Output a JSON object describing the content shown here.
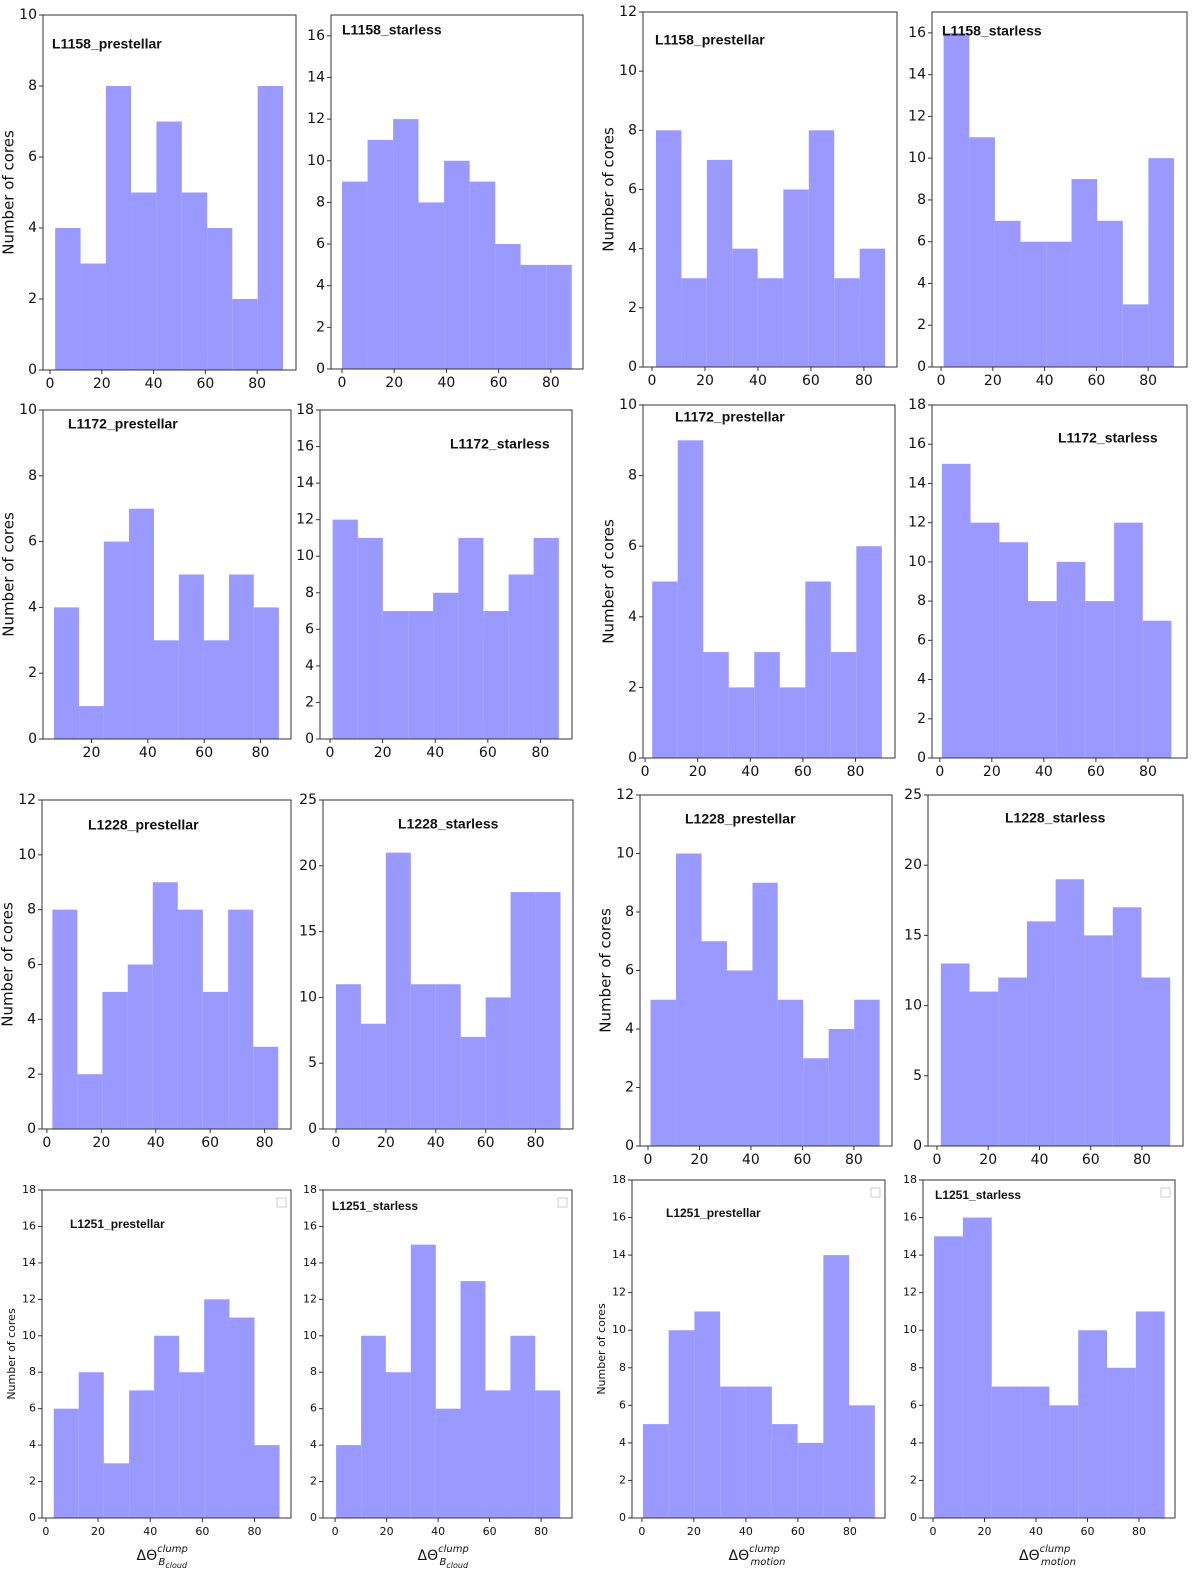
{
  "chart_data": [
    {
      "type": "histogram",
      "title": "L1158_prestellar",
      "ylabel": "Number of cores",
      "color": "#9999ff",
      "bins": [
        2,
        11.8,
        21.6,
        31.3,
        41.1,
        50.9,
        60.7,
        70.4,
        80.2,
        90
      ],
      "counts": [
        4,
        3,
        8,
        5,
        7,
        5,
        4,
        2,
        8
      ],
      "xlim": [
        -2.7,
        95
      ],
      "ylim": [
        0,
        10
      ],
      "xticks": [
        0,
        20,
        40,
        60,
        80
      ],
      "yticks": [
        0,
        2,
        4,
        6,
        8,
        10
      ]
    },
    {
      "type": "histogram",
      "title": "L1158_starless",
      "color": "#9999ff",
      "bins": [
        0,
        9.8,
        19.6,
        29.3,
        39.1,
        48.9,
        58.7,
        68.4,
        78.2,
        88
      ],
      "counts": [
        9,
        11,
        12,
        8,
        10,
        9,
        6,
        5,
        5
      ],
      "xlim": [
        -4.2,
        92.3
      ],
      "ylim": [
        0,
        17
      ],
      "xticks": [
        0,
        20,
        40,
        60,
        80
      ],
      "yticks": [
        0,
        2,
        4,
        6,
        8,
        10,
        12,
        14,
        16
      ]
    },
    {
      "type": "histogram",
      "title": "L1158_prestellar",
      "ylabel": "Number of cores",
      "color": "#9999ff",
      "bins": [
        1.5,
        11.1,
        20.7,
        30.3,
        39.9,
        49.6,
        59.2,
        68.8,
        78.4,
        88
      ],
      "counts": [
        8,
        3,
        7,
        4,
        3,
        6,
        8,
        3,
        4
      ],
      "xlim": [
        -3.4,
        92.5
      ],
      "ylim": [
        0,
        12
      ],
      "xticks": [
        0,
        20,
        40,
        60,
        80
      ],
      "yticks": [
        0,
        2,
        4,
        6,
        8,
        10,
        12
      ]
    },
    {
      "type": "histogram",
      "title": "L1158_starless",
      "color": "#9999ff",
      "bins": [
        1,
        10.9,
        20.8,
        30.7,
        40.6,
        50.4,
        60.3,
        70.2,
        80.1,
        90
      ],
      "counts": [
        16,
        11,
        7,
        6,
        6,
        9,
        7,
        3,
        10
      ],
      "xlim": [
        -3.5,
        95
      ],
      "ylim": [
        0,
        17
      ],
      "xticks": [
        0,
        20,
        40,
        60,
        80
      ],
      "yticks": [
        0,
        2,
        4,
        6,
        8,
        10,
        12,
        14,
        16
      ]
    },
    {
      "type": "histogram",
      "title": "L1172_prestellar",
      "ylabel": "Number of cores",
      "color": "#9999ff",
      "bins": [
        6.7,
        15.6,
        24.4,
        33.3,
        42.2,
        51.0,
        59.9,
        68.8,
        77.6,
        86.5
      ],
      "counts": [
        4,
        1,
        6,
        7,
        3,
        5,
        3,
        5,
        4
      ],
      "xlim": [
        2.8,
        90.8
      ],
      "ylim": [
        0,
        10
      ],
      "xticks": [
        20,
        40,
        60,
        80
      ],
      "yticks": [
        0,
        2,
        4,
        6,
        8,
        10
      ]
    },
    {
      "type": "histogram",
      "title": "L1172_starless",
      "color": "#9999ff",
      "bins": [
        1,
        10.6,
        20.1,
        29.7,
        39.2,
        48.8,
        58.3,
        67.9,
        77.4,
        87
      ],
      "counts": [
        12,
        11,
        7,
        7,
        8,
        11,
        7,
        9,
        11
      ],
      "xlim": [
        -3.8,
        92
      ],
      "ylim": [
        0,
        18
      ],
      "xticks": [
        0,
        20,
        40,
        60,
        80
      ],
      "yticks": [
        0,
        2,
        4,
        6,
        8,
        10,
        12,
        14,
        16,
        18
      ]
    },
    {
      "type": "histogram",
      "title": "L1172_prestellar",
      "ylabel": "Number of cores",
      "color": "#9999ff",
      "bins": [
        2.7,
        12.4,
        22.1,
        31.8,
        41.5,
        51.2,
        60.9,
        70.6,
        80.3,
        90
      ],
      "counts": [
        5,
        9,
        3,
        2,
        3,
        2,
        5,
        3,
        6
      ],
      "xlim": [
        -0.8,
        95
      ],
      "ylim": [
        0,
        10
      ],
      "xticks": [
        0,
        20,
        40,
        60,
        80
      ],
      "yticks": [
        0,
        2,
        4,
        6,
        8,
        10
      ]
    },
    {
      "type": "histogram",
      "title": "L1172_starless",
      "color": "#9999ff",
      "bins": [
        0.8,
        11.8,
        22.9,
        33.9,
        44.9,
        55.9,
        67.0,
        78.0,
        89
      ],
      "counts": [
        15,
        12,
        11,
        8,
        10,
        8,
        12,
        7
      ],
      "xlim": [
        -3,
        95
      ],
      "ylim": [
        0,
        18
      ],
      "xticks": [
        0,
        20,
        40,
        60,
        80
      ],
      "yticks": [
        0,
        2,
        4,
        6,
        8,
        10,
        12,
        14,
        16,
        18
      ]
    },
    {
      "type": "histogram",
      "title": "L1228_prestellar",
      "ylabel": "Number of cores",
      "color": "#9999ff",
      "bins": [
        2,
        11.2,
        20.4,
        29.7,
        38.9,
        48.1,
        57.3,
        66.6,
        75.8,
        85
      ],
      "counts": [
        8,
        2,
        5,
        6,
        9,
        8,
        5,
        8,
        3
      ],
      "xlim": [
        -1.8,
        89.7
      ],
      "ylim": [
        0,
        12
      ],
      "xticks": [
        0,
        20,
        40,
        60,
        80
      ],
      "yticks": [
        0,
        2,
        4,
        6,
        8,
        10,
        12
      ]
    },
    {
      "type": "histogram",
      "title": "L1228_starless",
      "color": "#9999ff",
      "bins": [
        0,
        10,
        20,
        30,
        40,
        50,
        60,
        70,
        80,
        90
      ],
      "counts": [
        11,
        8,
        21,
        11,
        11,
        7,
        10,
        18,
        18
      ],
      "xlim": [
        -5.2,
        95
      ],
      "ylim": [
        0,
        25
      ],
      "xticks": [
        0,
        20,
        40,
        60,
        80
      ],
      "yticks": [
        0,
        5,
        10,
        15,
        20,
        25
      ]
    },
    {
      "type": "histogram",
      "title": "L1228_prestellar",
      "ylabel": "Number of cores",
      "color": "#9999ff",
      "bins": [
        1,
        10.9,
        20.8,
        30.7,
        40.6,
        50.4,
        60.3,
        70.2,
        80.1,
        90
      ],
      "counts": [
        5,
        10,
        7,
        6,
        9,
        5,
        3,
        4,
        5
      ],
      "xlim": [
        -3.1,
        94.8
      ],
      "ylim": [
        0,
        12
      ],
      "xticks": [
        0,
        20,
        40,
        60,
        80
      ],
      "yticks": [
        0,
        2,
        4,
        6,
        8,
        10,
        12
      ]
    },
    {
      "type": "histogram",
      "title": "L1228_starless",
      "color": "#9999ff",
      "bins": [
        1.5,
        12.7,
        23.9,
        35.1,
        46.3,
        57.4,
        68.6,
        79.8,
        91
      ],
      "counts": [
        13,
        11,
        12,
        16,
        19,
        15,
        17,
        12
      ],
      "xlim": [
        -3.5,
        96
      ],
      "ylim": [
        0,
        25
      ],
      "xticks": [
        0,
        20,
        40,
        60,
        80
      ],
      "yticks": [
        0,
        5,
        10,
        15,
        20,
        25
      ]
    },
    {
      "type": "histogram",
      "title": "L1251_prestellar",
      "ylabel": "Number of cores",
      "xlabel": {
        "base": "ΔΘ",
        "sup": "clump",
        "sub": "B",
        "subsub": "cloud"
      },
      "color": "#9999ff",
      "bins": [
        3,
        12.6,
        22.2,
        31.9,
        41.5,
        51.1,
        60.7,
        70.4,
        80.0,
        89.6
      ],
      "counts": [
        6,
        8,
        3,
        7,
        10,
        8,
        12,
        11,
        4
      ],
      "xlim": [
        -1.5,
        94
      ],
      "ylim": [
        0,
        18
      ],
      "xticks": [
        0,
        20,
        40,
        60,
        80
      ],
      "yticks": [
        0,
        2,
        4,
        6,
        8,
        10,
        12,
        14,
        16,
        18
      ]
    },
    {
      "type": "histogram",
      "title": "L1251_starless",
      "xlabel": {
        "base": "ΔΘ",
        "sup": "clump",
        "sub": "B",
        "subsub": "cloud"
      },
      "color": "#9999ff",
      "bins": [
        0.4,
        10.1,
        19.7,
        29.4,
        39.1,
        48.7,
        58.4,
        68.1,
        77.7,
        87.4
      ],
      "counts": [
        4,
        10,
        8,
        15,
        6,
        13,
        7,
        10,
        7
      ],
      "xlim": [
        -4.7,
        92
      ],
      "ylim": [
        0,
        18
      ],
      "xticks": [
        0,
        20,
        40,
        60,
        80
      ],
      "yticks": [
        0,
        2,
        4,
        6,
        8,
        10,
        12,
        14,
        16,
        18
      ]
    },
    {
      "type": "histogram",
      "title": "L1251_prestellar",
      "ylabel": "Number of cores",
      "xlabel": {
        "base": "ΔΘ",
        "sup": "clump",
        "sub": "motion"
      },
      "color": "#9999ff",
      "bins": [
        0.4,
        10.3,
        20.2,
        30.1,
        40.0,
        50.0,
        59.9,
        69.8,
        79.7,
        89.6
      ],
      "counts": [
        5,
        10,
        11,
        7,
        7,
        5,
        4,
        14,
        6
      ],
      "xlim": [
        -3.8,
        93.5
      ],
      "ylim": [
        0,
        18
      ],
      "xticks": [
        0,
        20,
        40,
        60,
        80
      ],
      "yticks": [
        0,
        2,
        4,
        6,
        8,
        10,
        12,
        14,
        16,
        18
      ]
    },
    {
      "type": "histogram",
      "title": "L1251_starless",
      "xlabel": {
        "base": "ΔΘ",
        "sup": "clump",
        "sub": "motion"
      },
      "color": "#9999ff",
      "bins": [
        0.4,
        11.6,
        22.8,
        34.0,
        45.2,
        56.4,
        67.6,
        78.8,
        90
      ],
      "counts": [
        15,
        16,
        7,
        7,
        6,
        10,
        8,
        11
      ],
      "xlim": [
        -3.9,
        94
      ],
      "ylim": [
        0,
        18
      ],
      "xticks": [
        0,
        20,
        40,
        60,
        80
      ],
      "yticks": [
        0,
        2,
        4,
        6,
        8,
        10,
        12,
        14,
        16,
        18
      ]
    }
  ]
}
